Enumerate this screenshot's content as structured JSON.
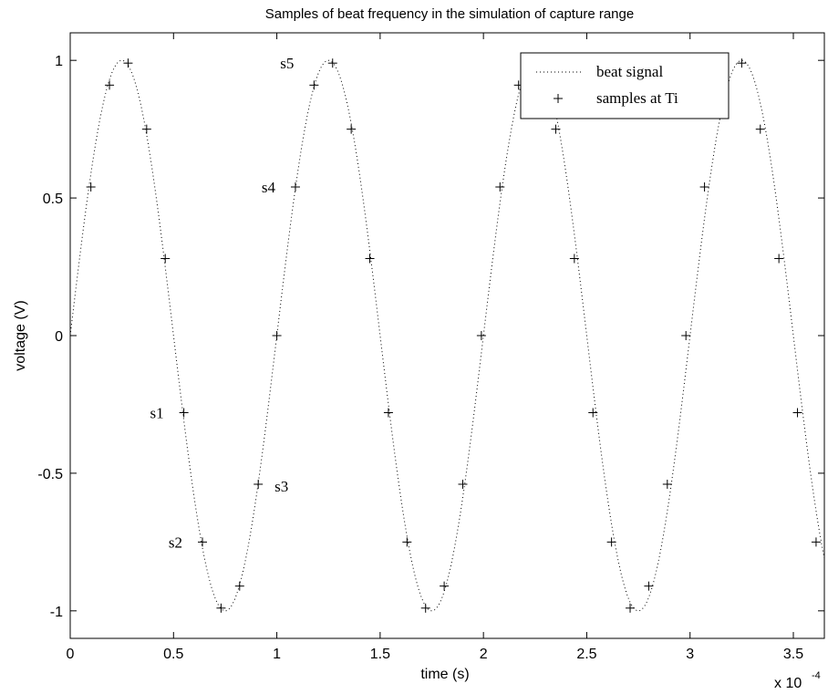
{
  "chart_data": {
    "type": "line",
    "title": "Samples of beat frequency in the simulation of capture range",
    "xlabel": "time (s)",
    "ylabel": "voltage (V)",
    "x_multiplier_label": "x 10",
    "x_multiplier_exponent": "-4",
    "xlim": [
      0,
      3.65
    ],
    "ylim": [
      -1.1,
      1.1
    ],
    "x_scale": 0.0001,
    "xticks": [
      0,
      0.5,
      1,
      1.5,
      2,
      2.5,
      3,
      3.5
    ],
    "xtick_labels": [
      "0",
      "0.5",
      "1",
      "1.5",
      "2",
      "2.5",
      "3",
      "3.5"
    ],
    "yticks": [
      -1,
      -0.5,
      0,
      0.5,
      1
    ],
    "ytick_labels": [
      "-1",
      "-0.5",
      "0",
      "0.5",
      "1"
    ],
    "legend_position": "top-right",
    "series": [
      {
        "name": "beat signal",
        "style": "dotted",
        "color": "#000000",
        "function": "sin(2*pi*x)",
        "x_range": [
          0,
          3.65
        ]
      },
      {
        "name": "samples at Ti",
        "style": "plus",
        "color": "#000000",
        "x": [
          0.1,
          0.19,
          0.28,
          0.37,
          0.46,
          0.55,
          0.64,
          0.73,
          0.82,
          0.91,
          1.0,
          1.09,
          1.18,
          1.27,
          1.36,
          1.45,
          1.54,
          1.63,
          1.72,
          1.81,
          1.9,
          1.99,
          2.08,
          2.17,
          2.26,
          2.35,
          2.44,
          2.53,
          2.62,
          2.71,
          2.8,
          2.89,
          2.98,
          3.07,
          3.16,
          3.25,
          3.34,
          3.43,
          3.52,
          3.61
        ],
        "y": [
          0.54,
          0.91,
          0.99,
          0.75,
          0.28,
          -0.28,
          -0.75,
          -0.99,
          -0.91,
          -0.54,
          0.0,
          0.54,
          0.91,
          0.99,
          0.75,
          0.28,
          -0.28,
          -0.75,
          -0.99,
          -0.91,
          -0.54,
          0.0,
          0.54,
          0.91,
          0.99,
          0.75,
          0.28,
          -0.28,
          -0.75,
          -0.99,
          -0.91,
          -0.54,
          0.0,
          0.54,
          0.91,
          0.99,
          0.75,
          0.28,
          -0.28,
          -0.75
        ]
      }
    ],
    "annotations": [
      {
        "text": "s1",
        "x": 0.55,
        "y": -0.28
      },
      {
        "text": "s2",
        "x": 0.64,
        "y": -0.75
      },
      {
        "text": "s3",
        "x": 0.91,
        "y": -0.54
      },
      {
        "text": "s4",
        "x": 1.09,
        "y": 0.54
      },
      {
        "text": "s5",
        "x": 1.18,
        "y": 0.99
      }
    ]
  }
}
